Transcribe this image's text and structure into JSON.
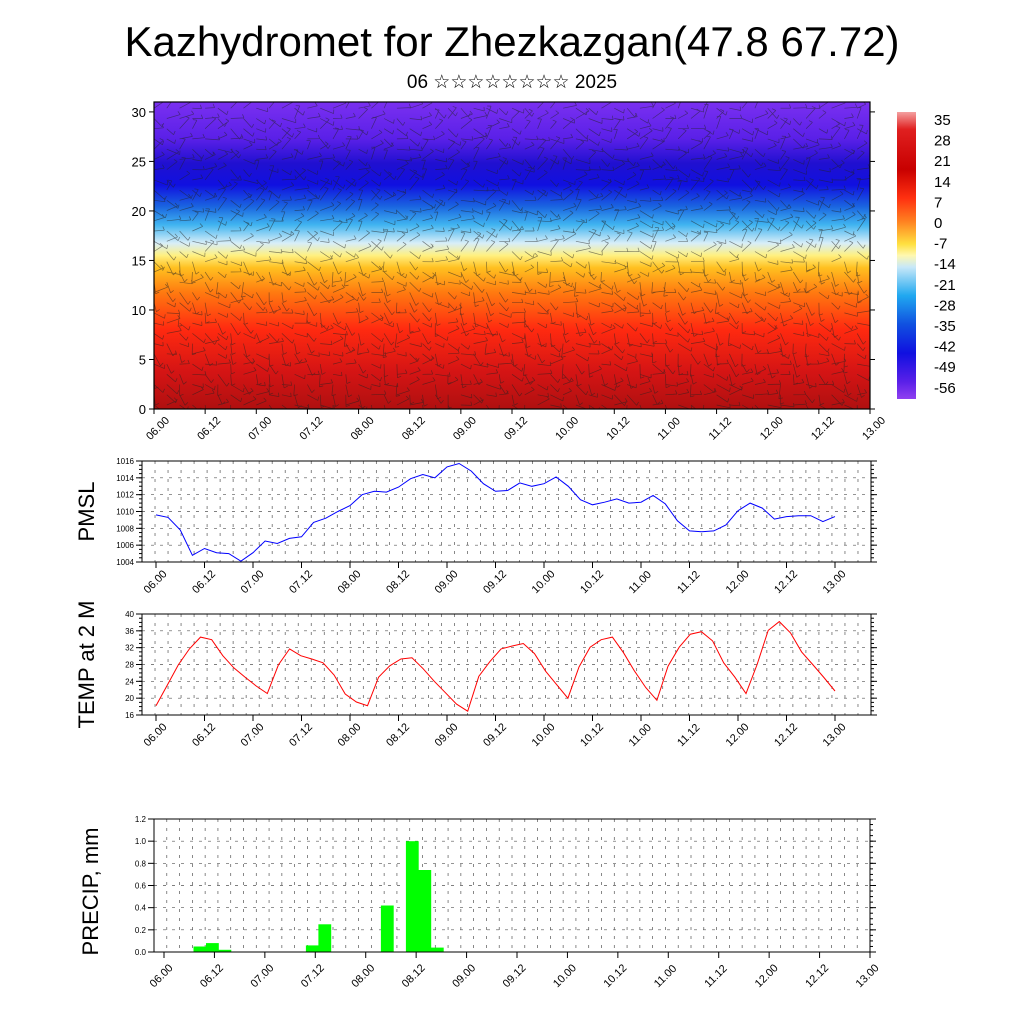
{
  "header": {
    "title": "Kazhydromet for Zhezkazgan(47.8 67.72)",
    "subtitle": "06 ☆☆☆☆☆☆☆☆ 2025"
  },
  "time_labels": [
    "06.00",
    "06.12",
    "07.00",
    "07.12",
    "08.00",
    "08.12",
    "09.00",
    "09.12",
    "10.00",
    "10.12",
    "11.00",
    "11.12",
    "12.00",
    "12.12",
    "13.00"
  ],
  "chart_data": [
    {
      "type": "heatmap",
      "xlabel": "",
      "ylabel": "",
      "x": [
        "06.00",
        "06.12",
        "07.00",
        "07.12",
        "08.00",
        "08.12",
        "09.00",
        "09.12",
        "10.00",
        "10.12",
        "11.00",
        "11.12",
        "12.00",
        "12.12",
        "13.00"
      ],
      "ylim": [
        0,
        31
      ],
      "yticks": [
        0,
        5,
        10,
        15,
        20,
        25,
        30
      ],
      "colorbar": {
        "labels": [
          "35",
          "28",
          "21",
          "14",
          "7",
          "0",
          "-7",
          "-14",
          "-21",
          "-28",
          "-35",
          "-42",
          "-49",
          "-56"
        ],
        "range": [
          -63,
          38
        ]
      },
      "description": "temperature cross-section with wind barbs; warm (red) near surface, cold (blue/violet) aloft"
    },
    {
      "type": "line",
      "ylabel": "PMSL",
      "ylim": [
        1004,
        1016
      ],
      "yticks": [
        1004,
        1006,
        1008,
        1010,
        1012,
        1014,
        1016
      ],
      "series": [
        {
          "color": "#0000ff",
          "values": [
            1009.6,
            1009.3,
            1007.8,
            1004.8,
            1005.6,
            1005.1,
            1005.0,
            1004.1,
            1005.1,
            1006.5,
            1006.2,
            1006.8,
            1007.0,
            1008.7,
            1009.2,
            1010.0,
            1010.7,
            1012.0,
            1012.4,
            1012.3,
            1012.9,
            1013.9,
            1014.4,
            1014.0,
            1015.3,
            1015.7,
            1014.8,
            1013.3,
            1012.4,
            1012.5,
            1013.4,
            1013.0,
            1013.3,
            1014.1,
            1013.0,
            1011.4,
            1010.8,
            1011.1,
            1011.5,
            1011.0,
            1011.1,
            1011.9,
            1010.9,
            1008.9,
            1007.7,
            1007.6,
            1007.7,
            1008.4,
            1010.1,
            1011.0,
            1010.4,
            1009.1,
            1009.4,
            1009.5,
            1009.5,
            1008.8,
            1009.4
          ]
        }
      ]
    },
    {
      "type": "line",
      "ylabel": "TEMP at 2 M",
      "ylim": [
        16,
        40
      ],
      "yticks": [
        16,
        20,
        24,
        28,
        32,
        36,
        40
      ],
      "series": [
        {
          "color": "#ff0000",
          "values": [
            18.2,
            23.0,
            27.9,
            31.7,
            34.5,
            33.9,
            30.1,
            27.2,
            25.0,
            22.9,
            21.1,
            27.9,
            31.7,
            30.1,
            29.3,
            28.4,
            25.5,
            21.0,
            19.1,
            18.2,
            25.0,
            27.7,
            29.3,
            29.6,
            27.0,
            24.0,
            21.3,
            18.6,
            16.9,
            25.2,
            28.7,
            31.7,
            32.4,
            33.0,
            30.6,
            26.4,
            23.2,
            20.0,
            27.4,
            32.1,
            33.9,
            34.5,
            30.8,
            26.4,
            22.5,
            19.5,
            27.6,
            32.1,
            35.2,
            35.8,
            33.6,
            28.4,
            25.0,
            21.1,
            28.0,
            36.1,
            38.2,
            35.5,
            31.0,
            28.0,
            24.9,
            21.7
          ]
        }
      ]
    },
    {
      "type": "bar",
      "ylabel": "PRECIP, mm",
      "ylim": [
        0,
        1.2
      ],
      "yticks": [
        "0.0",
        "0.2",
        "0.4",
        "0.6",
        "0.8",
        "1.0",
        "1.2"
      ],
      "bar_color": "#00ff00",
      "x_start_hours": 3,
      "x_step_hours": 3,
      "values": [
        0,
        0,
        0.05,
        0.08,
        0.02,
        0,
        0,
        0,
        0,
        0,
        0,
        0.06,
        0.25,
        0,
        0,
        0,
        0,
        0.42,
        0,
        1.0,
        0.74,
        0.04,
        0,
        0,
        0,
        0,
        0,
        0,
        0,
        0,
        0,
        0,
        0,
        0,
        0,
        0,
        0,
        0,
        0,
        0,
        0,
        0,
        0,
        0,
        0,
        0,
        0,
        0,
        0,
        0,
        0,
        0,
        0,
        0,
        0,
        0
      ]
    }
  ]
}
